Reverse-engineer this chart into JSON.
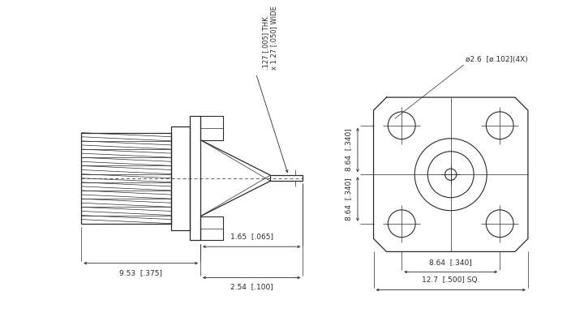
{
  "bg_color": "#ffffff",
  "line_color": "#2a2a2a",
  "lw": 0.8,
  "lw_thin": 0.5,
  "lw_thick": 0.9,
  "annotations": {
    "thk_label": ".127 [.005] THK.",
    "wide_label": "x 1.27 [.050] WIDE",
    "dim3_label": "1.65  [.065]",
    "dim4_label": "9.53  [.375]",
    "dim5_label": "2.54  [.100]",
    "hole_label": "ø2.6  [ø.102](4X)",
    "dim_h_label": "8.64  [.340]",
    "dim_w_label": "8.64  [.340]",
    "dim_sq_label": "12.7  [.500] SQ."
  }
}
